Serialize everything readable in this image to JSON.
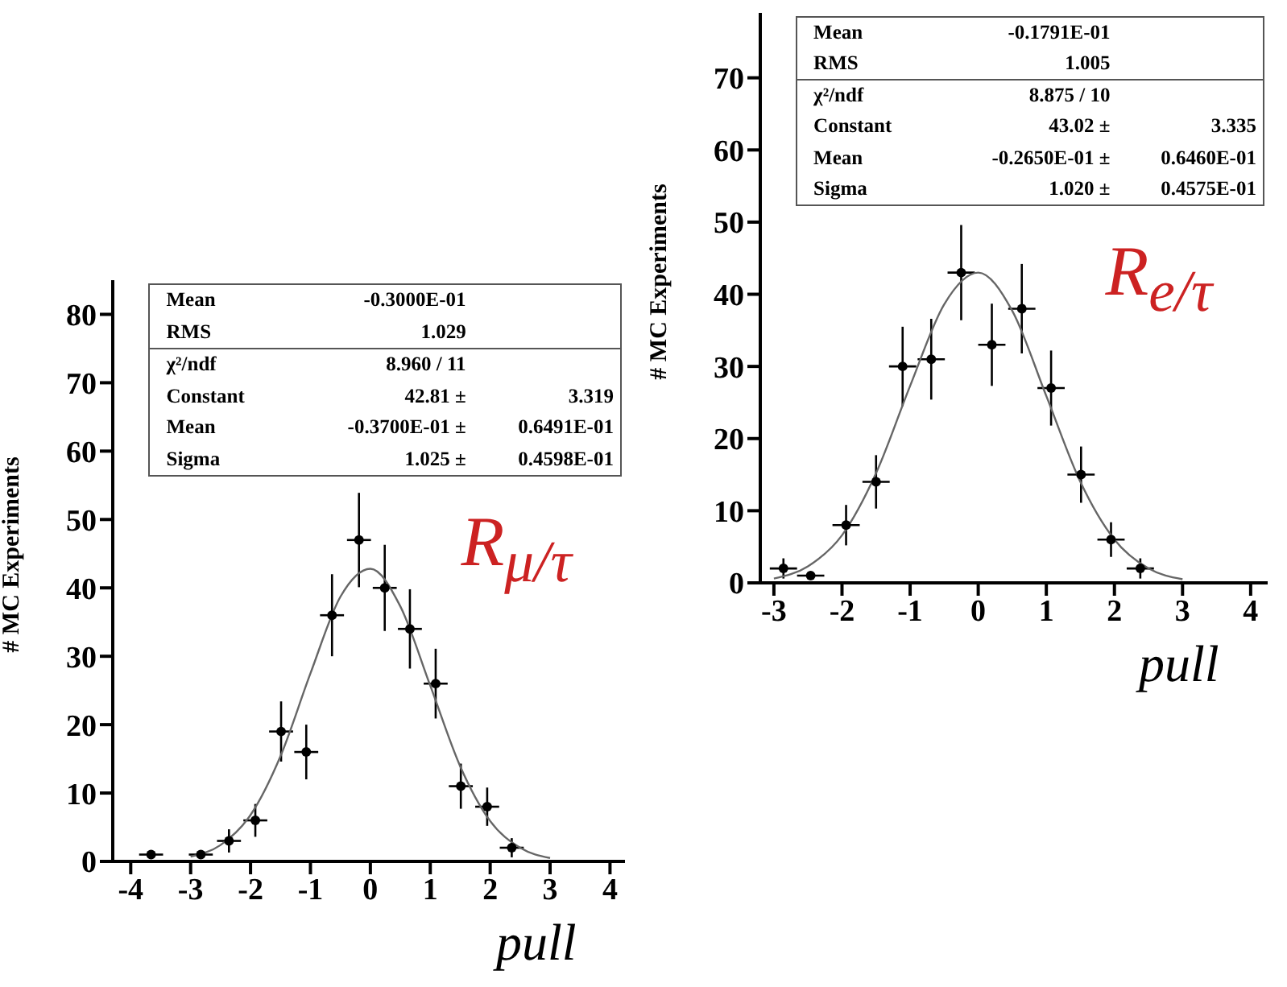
{
  "chart_data": [
    {
      "type": "scatter",
      "xlabel": "pull",
      "ylabel": "# MC Experiments",
      "xlim": [
        -4.3,
        4.25
      ],
      "ylim": [
        0,
        85
      ],
      "xticks": [
        -4,
        -3,
        -2,
        -1,
        0,
        1,
        2,
        3,
        4
      ],
      "yticks": [
        0,
        10,
        20,
        30,
        40,
        50,
        60,
        70,
        80
      ],
      "series": [
        {
          "type": "scatter",
          "color": "#000000",
          "marker": "circle",
          "x": [
            -3.66,
            -2.83,
            -2.36,
            -1.92,
            -1.49,
            -1.07,
            -0.64,
            -0.19,
            0.24,
            0.66,
            1.09,
            1.51,
            1.95,
            2.36
          ],
          "values": [
            1,
            1,
            3,
            6,
            19,
            16,
            36,
            47,
            40,
            34,
            26,
            11,
            8,
            2
          ],
          "errors": [
            null,
            null,
            1.7,
            2.4,
            4.4,
            4,
            6,
            6.9,
            6.3,
            5.8,
            5.1,
            3.3,
            2.8,
            1.4
          ],
          "xerrors": [
            0.2,
            0.2,
            0.2,
            0.2,
            0.2,
            0.2,
            0.2,
            0.2,
            0.2,
            0.2,
            0.2,
            0.2,
            0.2,
            0.2
          ]
        },
        {
          "type": "line",
          "color": "#666666",
          "x": [
            -3,
            -2.5,
            -2,
            -1.5,
            -1,
            -0.5,
            0,
            0.5,
            1,
            1.5,
            2,
            2.5,
            3
          ],
          "values": [
            0.7,
            2.4,
            6.8,
            15.4,
            27.5,
            38.7,
            42.8,
            37.3,
            25.7,
            13.9,
            5.9,
            2,
            0.5
          ]
        }
      ],
      "annotations": [
        "R$_{μ/τ}$",
        "Mean  -0.3000E-01",
        "RMS  1.029",
        "χ²/ndf  8.960 / 11",
        "Constant  42.81 ±  3.319",
        "Mean  -0.3700E-01 ±  0.6491E-01",
        "Sigma  1.025 ±  0.4598E-01"
      ]
    },
    {
      "type": "scatter",
      "xlabel": "pull",
      "ylabel": "# MC Experiments",
      "xlim": [
        -3.2,
        4.25
      ],
      "ylim": [
        0,
        79
      ],
      "xticks": [
        -3,
        -2,
        -1,
        0,
        1,
        2,
        3,
        4
      ],
      "yticks": [
        0,
        10,
        20,
        30,
        40,
        50,
        60,
        70
      ],
      "series": [
        {
          "type": "scatter",
          "color": "#000000",
          "marker": "circle",
          "x": [
            -2.86,
            -2.46,
            -1.94,
            -1.5,
            -1.11,
            -0.69,
            -0.25,
            0.2,
            0.64,
            1.07,
            1.51,
            1.95,
            2.38
          ],
          "values": [
            2,
            1,
            8,
            14,
            30,
            31,
            43,
            33,
            38,
            27,
            15,
            6,
            2
          ],
          "errors": [
            1.4,
            null,
            2.8,
            3.7,
            5.5,
            5.6,
            6.6,
            5.7,
            6.2,
            5.2,
            3.9,
            2.4,
            1.4
          ],
          "xerrors": [
            0.2,
            0.2,
            0.2,
            0.2,
            0.2,
            0.2,
            0.2,
            0.2,
            0.2,
            0.2,
            0.2,
            0.2,
            0.2
          ]
        },
        {
          "type": "line",
          "color": "#666666",
          "x": [
            -3,
            -2.5,
            -2,
            -1.5,
            -1,
            -0.5,
            0,
            0.5,
            1,
            1.5,
            2,
            2.5,
            3
          ],
          "values": [
            0.6,
            2.3,
            6.6,
            15.2,
            27.3,
            38.6,
            43,
            37.7,
            25.9,
            14,
            6,
            2,
            0.5
          ]
        }
      ],
      "annotations": [
        "R$_{e/τ}$",
        "Mean  -0.1791E-01",
        "RMS  1.005",
        "χ²/ndf  8.875 / 10",
        "Constant  43.02 ±  3.335",
        "Mean  -0.2650E-01 ±  0.6460E-01",
        "Sigma  1.020 ±  0.4575E-01"
      ]
    }
  ]
}
